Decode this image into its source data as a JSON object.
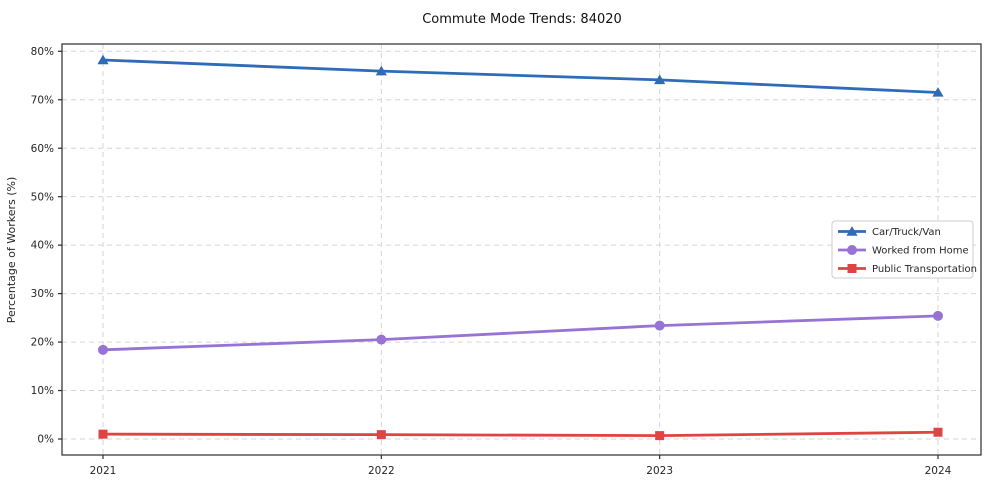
{
  "chart_data": {
    "type": "line",
    "title": "Commute Mode Trends: 84020",
    "xlabel": "",
    "ylabel": "Percentage of Workers (%)",
    "x": [
      2021,
      2022,
      2023,
      2024
    ],
    "x_labels": [
      "2021",
      "2022",
      "2023",
      "2024"
    ],
    "series": [
      {
        "name": "Car/Truck/Van",
        "values": [
          78.2,
          75.9,
          74.1,
          71.5
        ],
        "color": "#2e6bb8",
        "marker": "triangle"
      },
      {
        "name": "Worked from Home",
        "values": [
          18.4,
          20.5,
          23.4,
          25.4
        ],
        "color": "#9673d4",
        "marker": "circle"
      },
      {
        "name": "Public Transportation",
        "values": [
          1.0,
          0.9,
          0.7,
          1.4
        ],
        "color": "#e04343",
        "marker": "square"
      }
    ],
    "yticks": [
      0,
      10,
      20,
      30,
      40,
      50,
      60,
      70,
      80
    ],
    "ytick_labels": [
      "0%",
      "10%",
      "20%",
      "30%",
      "40%",
      "50%",
      "60%",
      "70%",
      "80%"
    ],
    "ylim": [
      -3.3,
      81.5
    ],
    "grid": true,
    "grid_style": "dashed",
    "grid_color": "#d6d6d6",
    "frame_color": "#2b2b2b",
    "legend_position": "center-right",
    "legend_border_color": "#cccccc"
  }
}
